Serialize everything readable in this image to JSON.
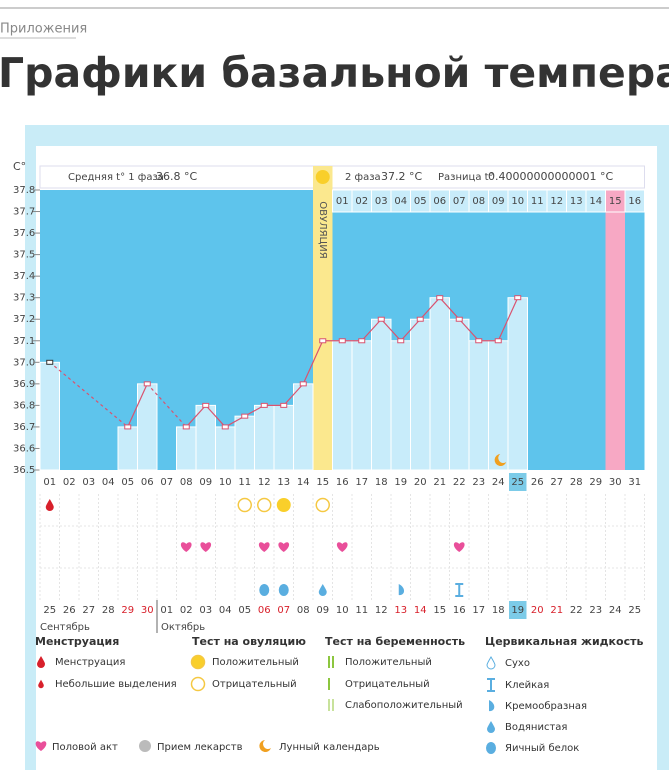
{
  "breadcrumb": "Приложения",
  "heading": "Графики базальной температуры",
  "chart_data": {
    "type": "line",
    "y_unit": "C°",
    "phase1": "Средняя t° 1 фаза",
    "phase1_value": "36.8 °C",
    "phase2": "2 фаза",
    "phase2_value": "37.2 °C",
    "diff": "Разница t°",
    "diff_value": "0.40000000000001 °C",
    "ovulation_label": "ОВУЛЯЦИЯ",
    "ovulation_day": "15",
    "pink_day": "30",
    "highlight_day": "25",
    "categories": [
      "01",
      "02",
      "03",
      "04",
      "05",
      "06",
      "07",
      "08",
      "09",
      "10",
      "11",
      "12",
      "13",
      "14",
      "15",
      "16",
      "17",
      "18",
      "19",
      "20",
      "21",
      "22",
      "23",
      "24",
      "25",
      "26",
      "27",
      "28",
      "29",
      "30",
      "31"
    ],
    "values": [
      37.0,
      null,
      null,
      null,
      36.7,
      36.9,
      null,
      36.7,
      36.8,
      36.7,
      36.75,
      36.8,
      36.8,
      36.9,
      37.1,
      37.1,
      37.1,
      37.2,
      37.1,
      37.2,
      37.3,
      37.2,
      37.1,
      37.1,
      37.3,
      null,
      null,
      null,
      null,
      null,
      null
    ],
    "color": "#d9536f",
    "ylim": [
      36.5,
      37.8
    ],
    "yticks": [
      37.8,
      37.7,
      37.6,
      37.5,
      37.4,
      37.3,
      37.2,
      37.1,
      {
        "value": 37.0,
        "label": "37.0"
      },
      36.9,
      36.8,
      36.7,
      36.6,
      36.5
    ],
    "post_ovulation_days": [
      "01",
      "02",
      "03",
      "04",
      "05",
      "06",
      "07",
      "08",
      "09",
      "10",
      "11",
      "12",
      "13",
      "14",
      "15",
      "16"
    ],
    "menstruation": [
      "01"
    ],
    "ovulation_test": {
      "positive": [
        "13"
      ],
      "negative": [
        "11",
        "12",
        "15"
      ]
    },
    "intercourse": [
      "08",
      "09",
      "12",
      "13",
      "16",
      "22"
    ],
    "cervical": {
      "egg_white": [
        "12",
        "13"
      ],
      "watery": [
        "15"
      ],
      "creamy": [
        "19"
      ],
      "sticky": [
        "22"
      ]
    },
    "moon": [
      "24"
    ],
    "dates": [
      "25",
      "26",
      "27",
      "28",
      "29",
      "30",
      "01",
      "02",
      "03",
      "04",
      "05",
      "06",
      "07",
      "08",
      "09",
      "10",
      "11",
      "12",
      "13",
      "14",
      "15",
      "16",
      "17",
      "18",
      "19",
      "20",
      "21",
      "22",
      "23",
      "24",
      "25"
    ],
    "weekend": [
      false,
      false,
      false,
      false,
      true,
      true,
      false,
      false,
      false,
      false,
      false,
      true,
      true,
      false,
      false,
      false,
      false,
      false,
      true,
      true,
      false,
      false,
      false,
      false,
      false,
      true,
      true,
      false,
      false,
      false,
      false
    ],
    "today_date": "19",
    "months": [
      "Сентябрь",
      "Октябрь"
    ],
    "legend": {
      "groups": [
        {
          "title": "Менструация",
          "items": [
            "Менструация",
            "Небольшие выделения"
          ]
        },
        {
          "title": "Тест на овуляцию",
          "items": [
            "Положительный",
            "Отрицательный"
          ]
        },
        {
          "title": "Тест на беременность",
          "items": [
            "Положительный",
            "Отрицательный",
            "Слабоположительный"
          ]
        },
        {
          "title": "Цервикальная жидкость",
          "items": [
            "Сухо",
            "Клейкая",
            "Кремообразная",
            "Водянистая",
            "Яичный белок"
          ]
        }
      ],
      "extra": [
        "Половой акт",
        "Прием лекарств",
        "Лунный календарь"
      ]
    }
  }
}
